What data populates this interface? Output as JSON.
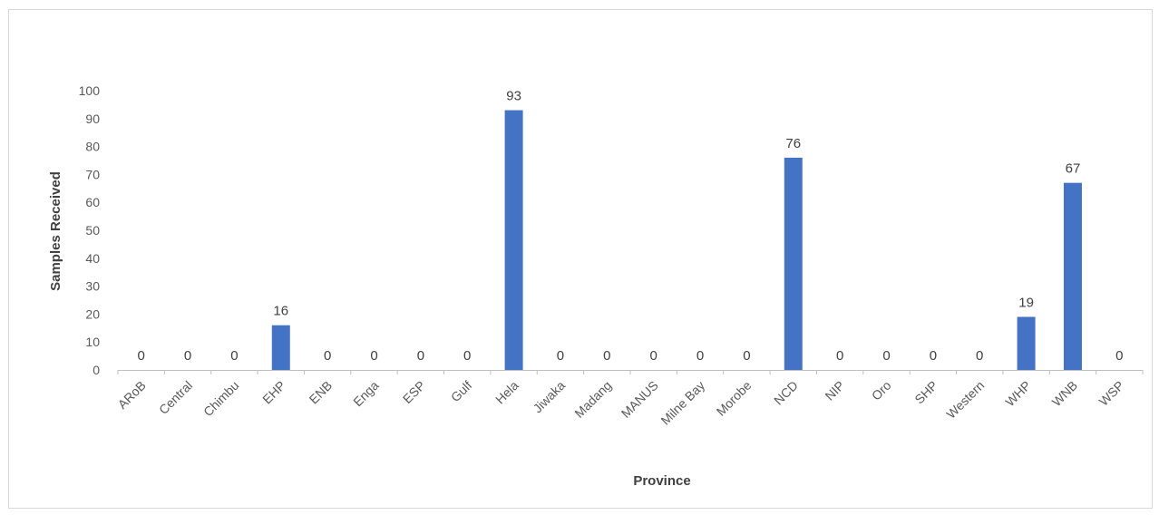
{
  "chart_data": {
    "type": "bar",
    "title": "",
    "xlabel": "Province",
    "ylabel": "Samples Received",
    "categories": [
      "ARoB",
      "Central",
      "Chimbu",
      "EHP",
      "ENB",
      "Enga",
      "ESP",
      "Gulf",
      "Hela",
      "Jiwaka",
      "Madang",
      "MANUS",
      "Milne Bay",
      "Morobe",
      "NCD",
      "NIP",
      "Oro",
      "SHP",
      "Western",
      "WHP",
      "WNB",
      "WSP"
    ],
    "values": [
      0,
      0,
      0,
      16,
      0,
      0,
      0,
      0,
      93,
      0,
      0,
      0,
      0,
      0,
      76,
      0,
      0,
      0,
      0,
      19,
      67,
      0
    ],
    "ylim": [
      0,
      100
    ],
    "yticks": [
      0,
      10,
      20,
      30,
      40,
      50,
      60,
      70,
      80,
      90,
      100
    ],
    "data_labels": true,
    "grid": false,
    "legend": "none",
    "bar_color": "#4472c4"
  }
}
